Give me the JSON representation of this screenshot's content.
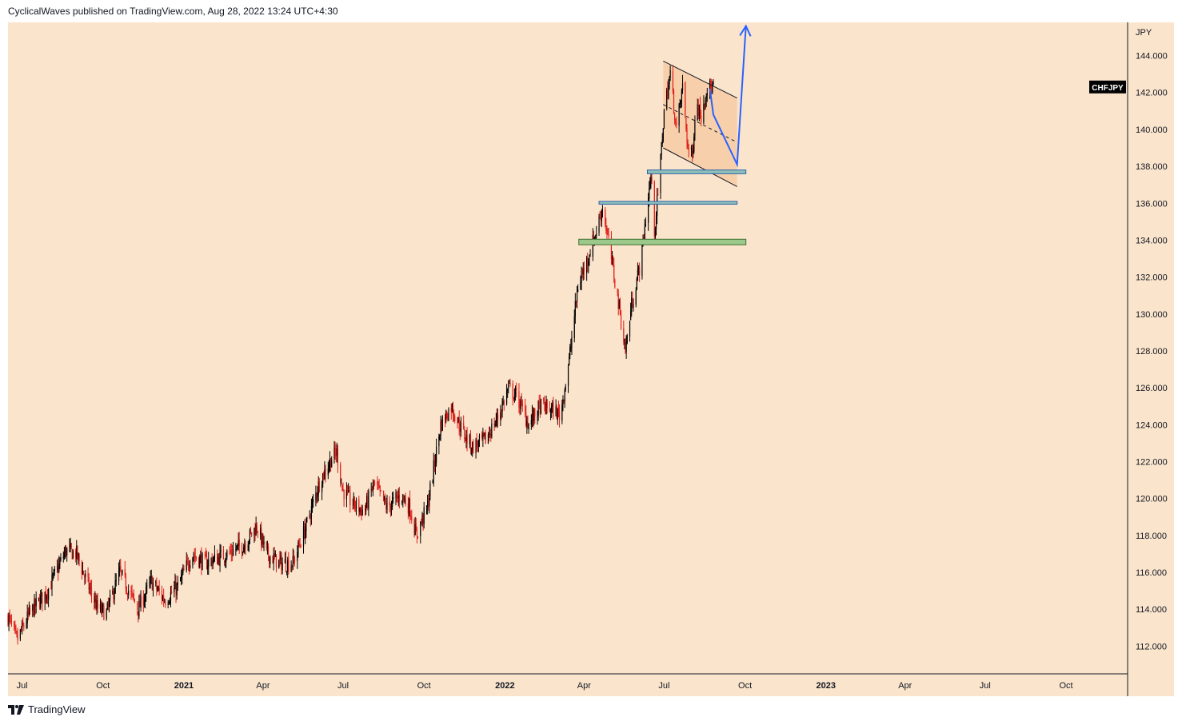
{
  "header": {
    "publisher_line": "CyclicalWaves published on TradingView.com, Aug 28, 2022 13:24 UTC+4:30"
  },
  "footer": {
    "brand": "TradingView"
  },
  "colors": {
    "background": "#fae4cc",
    "up_candle": "#000000",
    "down_candle": "#e0201c",
    "zone_blue_fill": "#8fc0b8",
    "zone_blue_stroke": "#2a5fae",
    "zone_green_fill": "#9bc98b",
    "zone_green_stroke": "#3f6f2f",
    "projection": "#2962ff",
    "channel_fill": "#f6c9a0"
  },
  "chart_data": {
    "type": "candlestick",
    "symbol": "CHFJPY",
    "currency_label": "JPY",
    "last_price": 142.3,
    "ylim": [
      110.5,
      145.8
    ],
    "grid": false,
    "y_ticks": [
      "144.000",
      "142.000",
      "140.000",
      "138.000",
      "136.000",
      "134.000",
      "132.000",
      "130.000",
      "128.000",
      "126.000",
      "124.000",
      "122.000",
      "120.000",
      "118.000",
      "116.000",
      "114.000",
      "112.000"
    ],
    "x_ticks": [
      {
        "label": "Jul",
        "date": "2020-07-01",
        "bold": false
      },
      {
        "label": "Oct",
        "date": "2020-10-01",
        "bold": false
      },
      {
        "label": "2021",
        "date": "2021-01-01",
        "bold": true
      },
      {
        "label": "Apr",
        "date": "2021-04-01",
        "bold": false
      },
      {
        "label": "Jul",
        "date": "2021-07-01",
        "bold": false
      },
      {
        "label": "Oct",
        "date": "2021-10-01",
        "bold": false
      },
      {
        "label": "2022",
        "date": "2022-01-01",
        "bold": true
      },
      {
        "label": "Apr",
        "date": "2022-04-01",
        "bold": false
      },
      {
        "label": "Jul",
        "date": "2022-07-01",
        "bold": false
      },
      {
        "label": "Oct",
        "date": "2022-10-01",
        "bold": false
      },
      {
        "label": "2023",
        "date": "2023-01-01",
        "bold": true
      },
      {
        "label": "Apr",
        "date": "2023-04-01",
        "bold": false
      },
      {
        "label": "Jul",
        "date": "2023-07-01",
        "bold": false
      },
      {
        "label": "Oct",
        "date": "2023-10-01",
        "bold": false
      }
    ],
    "x_range": [
      "2020-06-15",
      "2023-12-10"
    ],
    "price_path": [
      [
        "2020-06-15",
        113.6
      ],
      [
        "2020-06-25",
        112.3
      ],
      [
        "2020-07-10",
        113.8
      ],
      [
        "2020-07-30",
        115.0
      ],
      [
        "2020-08-20",
        117.2
      ],
      [
        "2020-09-01",
        117.0
      ],
      [
        "2020-09-10",
        115.8
      ],
      [
        "2020-09-25",
        114.0
      ],
      [
        "2020-10-05",
        113.8
      ],
      [
        "2020-10-20",
        116.0
      ],
      [
        "2020-11-10",
        114.0
      ],
      [
        "2020-11-25",
        115.5
      ],
      [
        "2020-12-10",
        114.5
      ],
      [
        "2020-12-25",
        115.2
      ],
      [
        "2021-01-10",
        117.0
      ],
      [
        "2021-01-25",
        116.5
      ],
      [
        "2021-02-15",
        116.9
      ],
      [
        "2021-03-10",
        117.5
      ],
      [
        "2021-03-25",
        118.5
      ],
      [
        "2021-04-05",
        117.0
      ],
      [
        "2021-04-20",
        116.5
      ],
      [
        "2021-05-05",
        116.5
      ],
      [
        "2021-05-20",
        118.5
      ],
      [
        "2021-06-05",
        121.0
      ],
      [
        "2021-06-18",
        122.2
      ],
      [
        "2021-06-24",
        122.5
      ],
      [
        "2021-06-30",
        120.5
      ],
      [
        "2021-07-10",
        119.8
      ],
      [
        "2021-07-25",
        119.3
      ],
      [
        "2021-08-05",
        120.8
      ],
      [
        "2021-08-20",
        119.5
      ],
      [
        "2021-09-05",
        120.2
      ],
      [
        "2021-09-15",
        119.5
      ],
      [
        "2021-09-22",
        118.0
      ],
      [
        "2021-10-05",
        119.6
      ],
      [
        "2021-10-20",
        124.0
      ],
      [
        "2021-11-01",
        125.0
      ],
      [
        "2021-11-15",
        123.5
      ],
      [
        "2021-11-25",
        122.8
      ],
      [
        "2021-12-10",
        123.2
      ],
      [
        "2021-12-25",
        124.5
      ],
      [
        "2022-01-05",
        126.0
      ],
      [
        "2022-01-15",
        125.5
      ],
      [
        "2022-01-28",
        124.0
      ],
      [
        "2022-02-10",
        125.0
      ],
      [
        "2022-02-25",
        124.8
      ],
      [
        "2022-03-05",
        124.5
      ],
      [
        "2022-03-15",
        127.5
      ],
      [
        "2022-03-25",
        131.5
      ],
      [
        "2022-04-05",
        133.0
      ],
      [
        "2022-04-15",
        134.5
      ],
      [
        "2022-04-22",
        135.8
      ],
      [
        "2022-05-02",
        133.0
      ],
      [
        "2022-05-12",
        130.0
      ],
      [
        "2022-05-18",
        128.0
      ],
      [
        "2022-05-25",
        130.5
      ],
      [
        "2022-06-05",
        133.0
      ],
      [
        "2022-06-12",
        136.0
      ],
      [
        "2022-06-16",
        137.5
      ],
      [
        "2022-06-20",
        134.5
      ],
      [
        "2022-06-25",
        137.0
      ],
      [
        "2022-07-01",
        141.0
      ],
      [
        "2022-07-08",
        143.0
      ],
      [
        "2022-07-15",
        140.0
      ],
      [
        "2022-07-22",
        142.3
      ],
      [
        "2022-07-28",
        139.0
      ],
      [
        "2022-08-02",
        138.5
      ],
      [
        "2022-08-06",
        141.5
      ],
      [
        "2022-08-12",
        140.8
      ],
      [
        "2022-08-18",
        142.2
      ],
      [
        "2022-08-26",
        142.3
      ]
    ],
    "zones": [
      {
        "name": "zone-137-6",
        "start": "2022-06-12",
        "end": "2022-10-02",
        "low": 137.6,
        "high": 137.8,
        "style": "blue"
      },
      {
        "name": "zone-136-0",
        "start": "2022-04-18",
        "end": "2022-09-22",
        "low": 135.95,
        "high": 136.1,
        "style": "blue"
      },
      {
        "name": "zone-133-9",
        "start": "2022-03-26",
        "end": "2022-10-02",
        "low": 133.75,
        "high": 134.05,
        "style": "green"
      }
    ],
    "channel": {
      "upper": [
        [
          "2022-06-30",
          143.7
        ],
        [
          "2022-09-22",
          141.7
        ]
      ],
      "lower": [
        [
          "2022-06-30",
          139.0
        ],
        [
          "2022-09-22",
          136.9
        ]
      ]
    },
    "projection_path": [
      [
        "2022-08-22",
        142.2
      ],
      [
        "2022-08-26",
        140.8
      ],
      [
        "2022-09-22",
        138.1
      ],
      [
        "2022-10-02",
        145.6
      ]
    ]
  }
}
